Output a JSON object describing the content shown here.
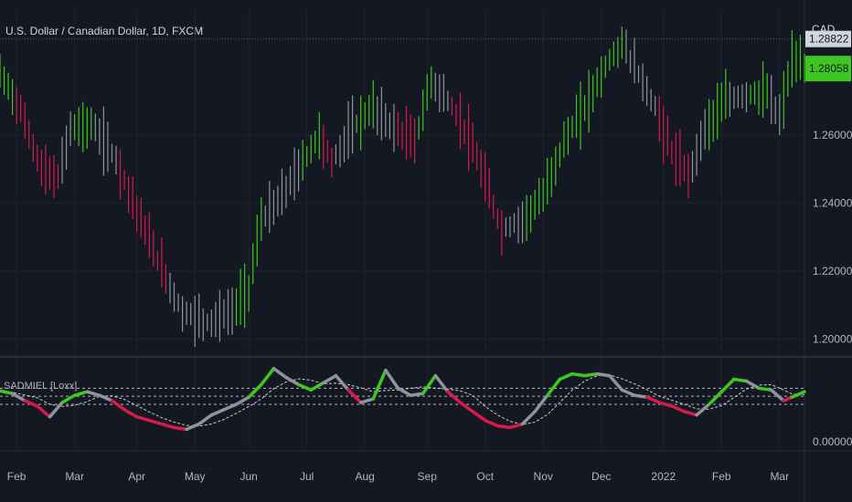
{
  "header": {
    "symbol": "U.S. Dollar / Canadian Dollar, 1D, FXCM",
    "currency": "CAD"
  },
  "indicator": {
    "label": "SADMIEL [Loxx]",
    "scale_label": "0.00000"
  },
  "colors": {
    "bg": "#141823",
    "grid": "#1f2330",
    "up": "#3ec71e",
    "down": "#d81a48",
    "neutral": "#8f939c",
    "axis_text": "#b2b5be"
  },
  "chart_data": [
    {
      "type": "line",
      "title": "U.S. Dollar / Canadian Dollar, 1D, FXCM",
      "ylim": [
        1.195,
        1.297
      ],
      "y_ticks": [
        "1.20000",
        "1.22000",
        "1.24000",
        "1.26000"
      ],
      "price_labels": [
        {
          "text": "1.28822",
          "value": 1.28822,
          "style": "last"
        },
        {
          "text": "1.28058",
          "value": 1.28058,
          "style": "current"
        }
      ],
      "x_ticks": [
        "Feb",
        "Mar",
        "Apr",
        "May",
        "Jun",
        "Jul",
        "Aug",
        "Sep",
        "Oct",
        "Nov",
        "Dec",
        "2022",
        "Feb",
        "Mar"
      ],
      "price_path": [
        [
          0,
          1.278,
          "up"
        ],
        [
          3,
          1.272,
          "up"
        ],
        [
          5,
          1.267,
          "down"
        ],
        [
          10,
          1.25,
          "down"
        ],
        [
          14,
          1.247,
          "down"
        ],
        [
          17,
          1.262,
          "neutral"
        ],
        [
          22,
          1.263,
          "up"
        ],
        [
          28,
          1.253,
          "neutral"
        ],
        [
          35,
          1.232,
          "down"
        ],
        [
          40,
          1.218,
          "down"
        ],
        [
          44,
          1.208,
          "neutral"
        ],
        [
          50,
          1.205,
          "neutral"
        ],
        [
          56,
          1.208,
          "neutral"
        ],
        [
          60,
          1.215,
          "up"
        ],
        [
          63,
          1.235,
          "up"
        ],
        [
          67,
          1.24,
          "neutral"
        ],
        [
          72,
          1.25,
          "neutral"
        ],
        [
          77,
          1.26,
          "up"
        ],
        [
          80,
          1.252,
          "down"
        ],
        [
          85,
          1.262,
          "neutral"
        ],
        [
          90,
          1.268,
          "up"
        ],
        [
          95,
          1.262,
          "neutral"
        ],
        [
          100,
          1.258,
          "down"
        ],
        [
          104,
          1.276,
          "up"
        ],
        [
          108,
          1.27,
          "neutral"
        ],
        [
          112,
          1.262,
          "down"
        ],
        [
          116,
          1.25,
          "down"
        ],
        [
          121,
          1.232,
          "down"
        ],
        [
          126,
          1.235,
          "neutral"
        ],
        [
          131,
          1.242,
          "up"
        ],
        [
          136,
          1.258,
          "up"
        ],
        [
          141,
          1.268,
          "up"
        ],
        [
          146,
          1.28,
          "up"
        ],
        [
          150,
          1.287,
          "up"
        ],
        [
          154,
          1.278,
          "neutral"
        ],
        [
          158,
          1.268,
          "neutral"
        ],
        [
          162,
          1.255,
          "down"
        ],
        [
          166,
          1.248,
          "down"
        ],
        [
          170,
          1.262,
          "neutral"
        ],
        [
          175,
          1.27,
          "up"
        ],
        [
          180,
          1.272,
          "neutral"
        ],
        [
          185,
          1.272,
          "up"
        ],
        [
          188,
          1.265,
          "neutral"
        ],
        [
          191,
          1.282,
          "up"
        ],
        [
          194,
          1.28,
          "up"
        ]
      ]
    },
    {
      "type": "line",
      "title": "SADMIEL [Loxx]",
      "x_ticks": [
        "Feb",
        "Mar",
        "Apr",
        "May",
        "Jun",
        "Jul",
        "Aug",
        "Sep",
        "Oct",
        "Nov",
        "Dec",
        "2022",
        "Feb",
        "Mar"
      ],
      "ylim": [
        0,
        100
      ],
      "series": [
        {
          "values": [
            [
              0,
              63,
              "up"
            ],
            [
              3,
              60,
              "up"
            ],
            [
              6,
              52,
              "neutral"
            ],
            [
              9,
              46,
              "down"
            ],
            [
              12,
              34,
              "down"
            ],
            [
              15,
              50,
              "neutral"
            ],
            [
              18,
              58,
              "up"
            ],
            [
              21,
              62,
              "up"
            ],
            [
              24,
              58,
              "neutral"
            ],
            [
              27,
              52,
              "neutral"
            ],
            [
              30,
              42,
              "down"
            ],
            [
              33,
              34,
              "down"
            ],
            [
              36,
              30,
              "down"
            ],
            [
              39,
              26,
              "down"
            ],
            [
              42,
              22,
              "down"
            ],
            [
              45,
              20,
              "down"
            ],
            [
              48,
              26,
              "neutral"
            ],
            [
              51,
              36,
              "neutral"
            ],
            [
              54,
              42,
              "neutral"
            ],
            [
              57,
              48,
              "neutral"
            ],
            [
              60,
              56,
              "neutral"
            ],
            [
              63,
              70,
              "up"
            ],
            [
              66,
              88,
              "up"
            ],
            [
              69,
              78,
              "neutral"
            ],
            [
              72,
              70,
              "neutral"
            ],
            [
              75,
              64,
              "up"
            ],
            [
              78,
              72,
              "up"
            ],
            [
              81,
              80,
              "neutral"
            ],
            [
              84,
              64,
              "neutral"
            ],
            [
              87,
              50,
              "down"
            ],
            [
              90,
              54,
              "neutral"
            ],
            [
              93,
              86,
              "up"
            ],
            [
              96,
              66,
              "neutral"
            ],
            [
              99,
              58,
              "neutral"
            ],
            [
              102,
              60,
              "neutral"
            ],
            [
              105,
              80,
              "up"
            ],
            [
              108,
              62,
              "neutral"
            ],
            [
              111,
              50,
              "down"
            ],
            [
              114,
              40,
              "down"
            ],
            [
              117,
              30,
              "down"
            ],
            [
              120,
              24,
              "down"
            ],
            [
              123,
              22,
              "down"
            ],
            [
              126,
              26,
              "down"
            ],
            [
              129,
              40,
              "neutral"
            ],
            [
              132,
              58,
              "neutral"
            ],
            [
              135,
              76,
              "up"
            ],
            [
              138,
              82,
              "up"
            ],
            [
              141,
              80,
              "up"
            ],
            [
              144,
              82,
              "up"
            ],
            [
              147,
              80,
              "neutral"
            ],
            [
              150,
              64,
              "neutral"
            ],
            [
              153,
              58,
              "neutral"
            ],
            [
              156,
              56,
              "neutral"
            ],
            [
              159,
              50,
              "down"
            ],
            [
              162,
              46,
              "down"
            ],
            [
              165,
              40,
              "down"
            ],
            [
              168,
              36,
              "down"
            ],
            [
              171,
              48,
              "neutral"
            ],
            [
              174,
              62,
              "up"
            ],
            [
              177,
              76,
              "up"
            ],
            [
              180,
              74,
              "up"
            ],
            [
              183,
              66,
              "neutral"
            ],
            [
              186,
              64,
              "up"
            ],
            [
              189,
              52,
              "neutral"
            ],
            [
              191,
              56,
              "down"
            ],
            [
              194,
              62,
              "up"
            ]
          ]
        }
      ],
      "levels": [
        66,
        57,
        48
      ]
    }
  ]
}
